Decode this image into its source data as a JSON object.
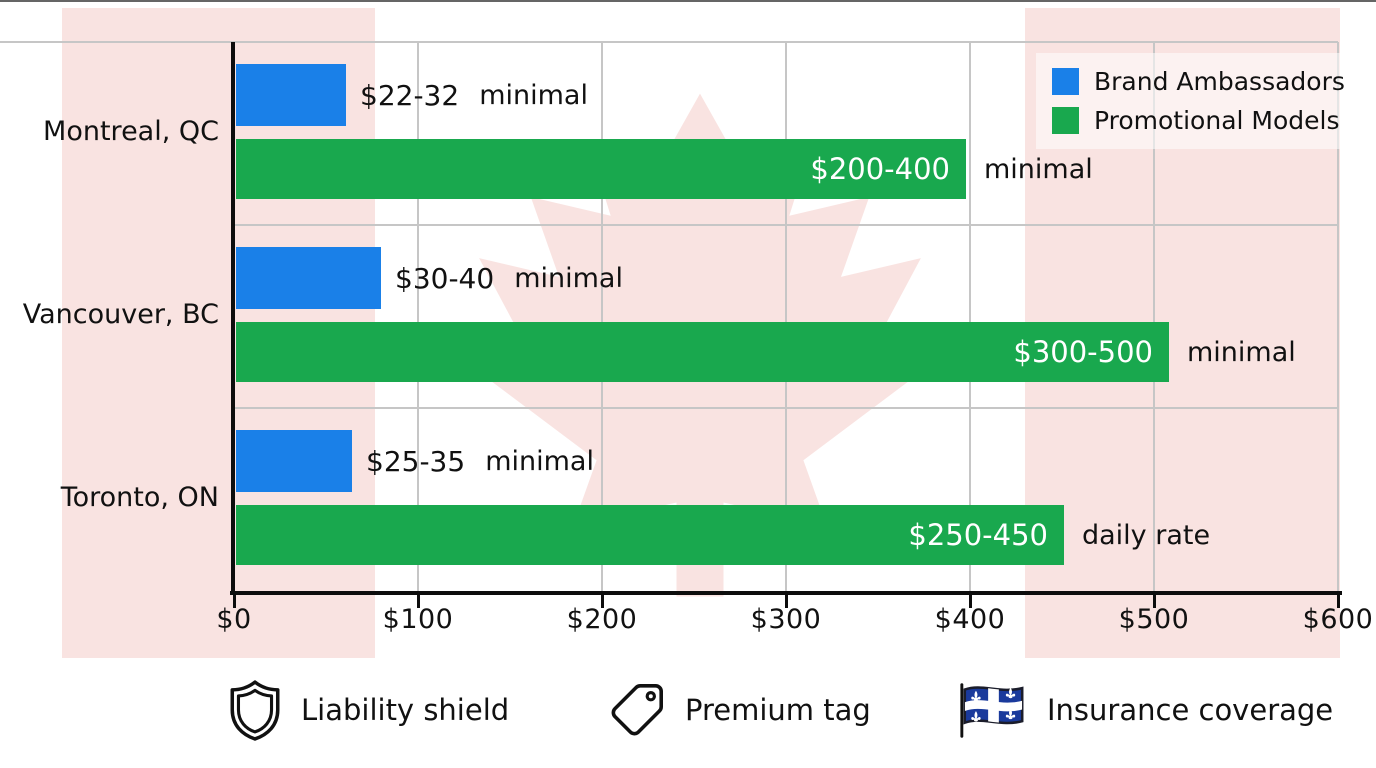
{
  "chart_data": {
    "type": "bar",
    "orientation": "horizontal",
    "title": "",
    "categories": [
      "Montreal, QC",
      "Vancouver, BC",
      "Toronto, ON"
    ],
    "x_ticks": [
      "$0",
      "$100",
      "$200",
      "$300",
      "$400",
      "$500",
      "$600"
    ],
    "xlim": [
      0,
      600
    ],
    "grid": true,
    "background_watermark": "canada-flag",
    "series": [
      {
        "name": "Brand Ambassadors",
        "color": "#1a80e8",
        "value_label_position": "outside",
        "points": [
          {
            "category": "Montreal, QC",
            "label": "$22-32",
            "qualifier": "minimal",
            "bar_end_dollars": 60
          },
          {
            "category": "Vancouver, BC",
            "label": "$30-40",
            "qualifier": "minimal",
            "bar_end_dollars": 79
          },
          {
            "category": "Toronto, ON",
            "label": "$25-35",
            "qualifier": "minimal",
            "bar_end_dollars": 63
          }
        ]
      },
      {
        "name": "Promotional Models",
        "color": "#19a84e",
        "value_label_position": "inside",
        "points": [
          {
            "category": "Montreal, QC",
            "label": "$200-400",
            "qualifier": "minimal",
            "bar_end_dollars": 397
          },
          {
            "category": "Vancouver, BC",
            "label": "$300-500",
            "qualifier": "minimal",
            "bar_end_dollars": 507
          },
          {
            "category": "Toronto, ON",
            "label": "$250-450",
            "qualifier": "daily rate",
            "bar_end_dollars": 450
          }
        ]
      }
    ],
    "legend": {
      "position": "top-right",
      "entries": [
        {
          "label": "Brand Ambassadors",
          "color": "#1a80e8"
        },
        {
          "label": "Promotional Models",
          "color": "#19a84e"
        }
      ]
    }
  },
  "footer": {
    "items": [
      {
        "icon": "shield-icon",
        "label": "Liability shield"
      },
      {
        "icon": "tag-icon",
        "label": "Premium tag"
      },
      {
        "icon": "quebec-flag-icon",
        "label": "Insurance coverage"
      }
    ]
  },
  "colors": {
    "bar_blue": "#1a80e8",
    "bar_green": "#19a84e",
    "flag_red": "#d52b1e",
    "quebec_blue": "#1a3a9c",
    "grid": "#c6c6c6",
    "axis": "#0d0d0d",
    "text": "#111111"
  }
}
